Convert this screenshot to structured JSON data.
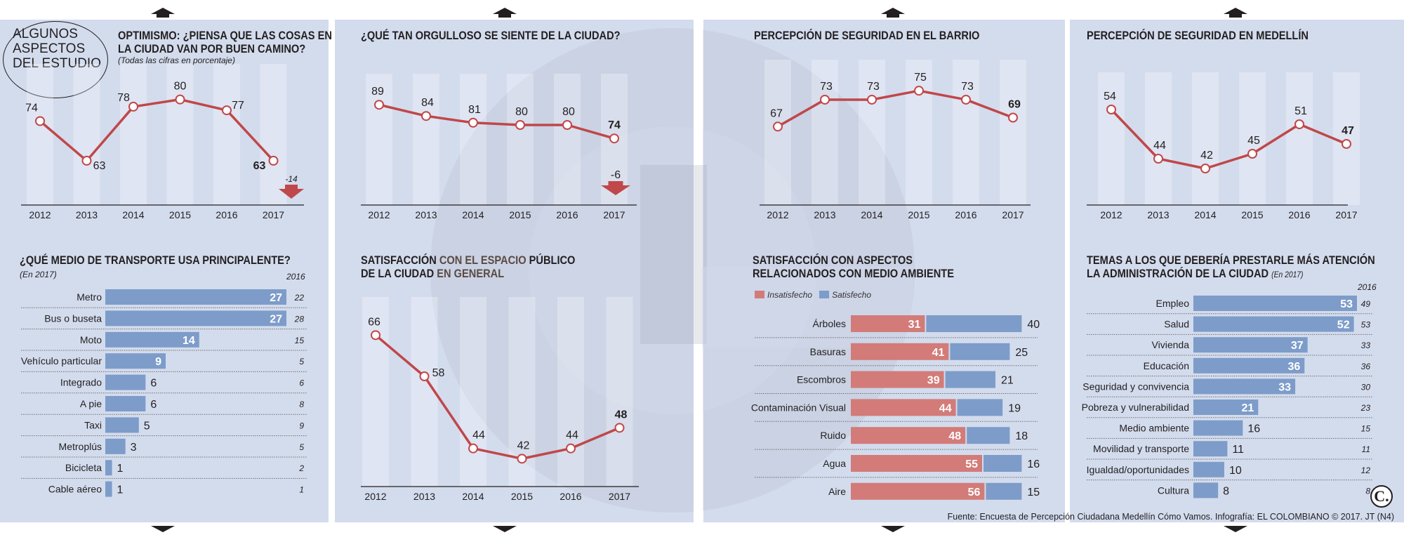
{
  "header": {
    "circle_label": "ALGUNOS\nASPECTOS\nDEL ESTUDIO"
  },
  "colors": {
    "panel": "#d3dced",
    "line": "#c0474a",
    "bar_blue": "#7d9cc9",
    "bar_red": "#d37b78",
    "text": "#231f20"
  },
  "panels": {
    "optimismo": {
      "title_line1": "OPTIMISMO: ¿PIENSA QUE LAS COSAS EN",
      "title_line2": "LA CIUDAD VAN POR BUEN CAMINO?",
      "note": "(Todas las cifras en porcentaje)"
    },
    "orgullo": {
      "title": "¿QUÉ TAN ORGULLOSO SE SIENTE DE LA CIUDAD?"
    },
    "barrio": {
      "title": "PERCEPCIÓN DE SEGURIDAD EN EL BARRIO"
    },
    "medellin": {
      "title": "PERCEPCIÓN DE SEGURIDAD EN MEDELLÍN"
    },
    "transporte": {
      "title": "¿QUÉ MEDIO DE TRANSPORTE USA PRINCIPALENTE?",
      "note": "(En 2017)",
      "prev_header": "2016"
    },
    "espacio": {
      "title_a": "SATISFACCIÓN",
      "title_b": " CON EL ESPACIO ",
      "title_c": "PÚBLICO",
      "title_line2_a": "DE LA CIUDAD",
      "title_line2_b": " EN GENERAL"
    },
    "ambiente": {
      "title_line1": "SATISFACCIÓN CON ASPECTOS",
      "title_line2": "RELACIONADOS CON MEDIO AMBIENTE",
      "legend_red": "Insatisfecho",
      "legend_blue": "Satisfecho"
    },
    "temas": {
      "title_line1": "TEMAS A LOS QUE DEBERÍA PRESTARLE MÁS ATENCIÓN",
      "title_line2": "LA ADMINISTRACIÓN DE LA CIUDAD",
      "note": "(En 2017)",
      "prev_header": "2016"
    }
  },
  "source": "Fuente: Encuesta de Percepción Ciudadana Medellín Cómo Vamos. Infografía: EL COLOMBIANO © 2017. JT (N4)",
  "logo": "C.",
  "chart_data": [
    {
      "id": "optimismo",
      "type": "line",
      "x": [
        "2012",
        "2013",
        "2014",
        "2015",
        "2016",
        "2017"
      ],
      "values": [
        74,
        63,
        78,
        80,
        77,
        63
      ],
      "ylim": [
        55,
        85
      ],
      "change_label": "-14",
      "grid": false
    },
    {
      "id": "orgullo",
      "type": "line",
      "x": [
        "2012",
        "2013",
        "2014",
        "2015",
        "2016",
        "2017"
      ],
      "values": [
        89,
        84,
        81,
        80,
        80,
        74
      ],
      "ylim": [
        60,
        95
      ],
      "change_label": "-6",
      "grid": false
    },
    {
      "id": "barrio",
      "type": "line",
      "x": [
        "2012",
        "2013",
        "2014",
        "2015",
        "2016",
        "2017"
      ],
      "values": [
        67,
        73,
        73,
        75,
        73,
        69
      ],
      "ylim": [
        60,
        78
      ],
      "grid": false
    },
    {
      "id": "medellin",
      "type": "line",
      "x": [
        "2012",
        "2013",
        "2014",
        "2015",
        "2016",
        "2017"
      ],
      "values": [
        54,
        44,
        42,
        45,
        51,
        47
      ],
      "ylim": [
        36,
        58
      ],
      "grid": false
    },
    {
      "id": "espacio",
      "type": "line",
      "x": [
        "2012",
        "2013",
        "2014",
        "2015",
        "2016",
        "2017"
      ],
      "values": [
        66,
        58,
        44,
        42,
        44,
        48
      ],
      "ylim": [
        37,
        70
      ],
      "grid": false
    },
    {
      "id": "transporte",
      "type": "bar",
      "orientation": "horizontal",
      "categories": [
        "Metro",
        "Bus o buseta",
        "Moto",
        "Vehículo particular",
        "Integrado",
        "A pie",
        "Taxi",
        "Metroplús",
        "Bicicleta",
        "Cable aéreo"
      ],
      "values": [
        27,
        27,
        14,
        9,
        6,
        6,
        5,
        3,
        1,
        1
      ],
      "prev_values": [
        "22",
        "28",
        "15",
        "5",
        "6",
        "8",
        "9",
        "5",
        "2",
        "1"
      ],
      "xlim": [
        0,
        27
      ]
    },
    {
      "id": "ambiente",
      "type": "bar",
      "orientation": "horizontal",
      "stacked": true,
      "categories": [
        "Árboles",
        "Basuras",
        "Escombros",
        "Contaminación Visual",
        "Ruido",
        "Agua",
        "Aire"
      ],
      "series": [
        {
          "name": "Insatisfecho",
          "values": [
            31,
            41,
            39,
            44,
            48,
            55,
            56
          ]
        },
        {
          "name": "Satisfecho",
          "values": [
            40,
            25,
            21,
            19,
            18,
            16,
            15
          ]
        }
      ]
    },
    {
      "id": "temas",
      "type": "bar",
      "orientation": "horizontal",
      "categories": [
        "Empleo",
        "Salud",
        "Vivienda",
        "Educación",
        "Seguridad y convivencia",
        "Pobreza y vulnerabilidad",
        "Medio ambiente",
        "Movilidad y transporte",
        "Igualdad/oportunidades",
        "Cultura"
      ],
      "values": [
        53,
        52,
        37,
        36,
        33,
        21,
        16,
        11,
        10,
        8
      ],
      "prev_values": [
        "49",
        "53",
        "33",
        "36",
        "30",
        "23",
        "15",
        "11",
        "12",
        "8"
      ],
      "xlim": [
        0,
        53
      ]
    }
  ]
}
